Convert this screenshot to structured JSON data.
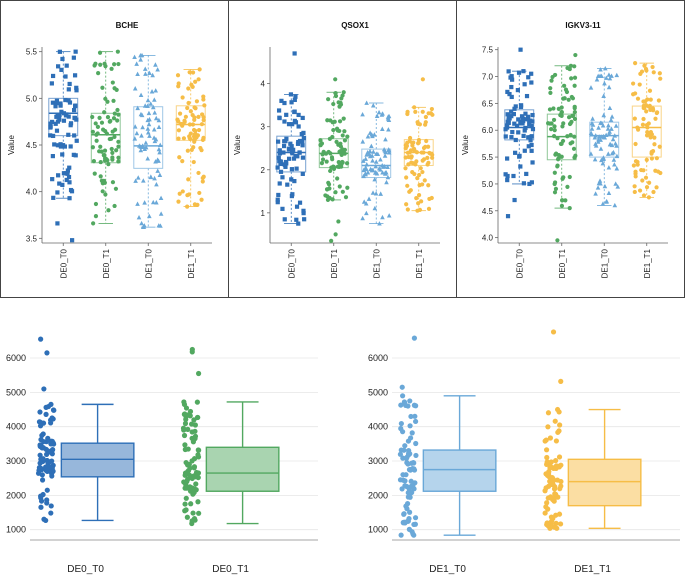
{
  "chart_data": [
    {
      "type": "box",
      "title": "BCHE",
      "ylabel": "Value",
      "ylim": [
        3.45,
        5.55
      ],
      "yticks": [
        3.5,
        4.0,
        4.5,
        5.0,
        5.5
      ],
      "tick_labels": [
        "3.5",
        "4.0",
        "4.5",
        "5.0",
        "5.5"
      ],
      "categories": [
        "DE0_T0",
        "DE0_T1",
        "DE1_T0",
        "DE1_T1"
      ],
      "boxes": [
        {
          "min": 3.93,
          "q1": 4.6,
          "median": 4.84,
          "q3": 5.0,
          "max": 5.5,
          "outliers": [
            3.66,
            3.48
          ]
        },
        {
          "min": 3.66,
          "q1": 4.31,
          "median": 4.61,
          "q3": 4.84,
          "max": 5.5,
          "outliers": []
        },
        {
          "min": 3.62,
          "q1": 4.25,
          "median": 4.49,
          "q3": 4.91,
          "max": 5.46,
          "outliers": []
        },
        {
          "min": 3.84,
          "q1": 4.55,
          "median": 4.72,
          "q3": 4.92,
          "max": 5.31,
          "outliers": []
        }
      ]
    },
    {
      "type": "box",
      "title": "QSOX1",
      "ylabel": "Value",
      "ylim": [
        0.3,
        4.85
      ],
      "yticks": [
        1,
        2,
        3,
        4
      ],
      "tick_labels": [
        "1",
        "2",
        "3",
        "4"
      ],
      "categories": [
        "DE0_T0",
        "DE0_T1",
        "DE1_T0",
        "DE1_T1"
      ],
      "boxes": [
        {
          "min": 0.75,
          "q1": 1.95,
          "median": 2.4,
          "q3": 2.78,
          "max": 3.75,
          "outliers": [
            4.7
          ]
        },
        {
          "min": 1.3,
          "q1": 2.05,
          "median": 2.38,
          "q3": 2.72,
          "max": 3.8,
          "outliers": [
            4.1,
            0.8,
            0.5,
            0.35
          ]
        },
        {
          "min": 0.75,
          "q1": 1.82,
          "median": 2.1,
          "q3": 2.48,
          "max": 3.55,
          "outliers": []
        },
        {
          "min": 1.05,
          "q1": 2.1,
          "median": 2.4,
          "q3": 2.7,
          "max": 3.45,
          "outliers": [
            4.1
          ]
        }
      ]
    },
    {
      "type": "box",
      "title": "IGKV3-11",
      "ylabel": "Value",
      "ylim": [
        3.9,
        7.55
      ],
      "yticks": [
        4.0,
        4.5,
        5.0,
        5.5,
        6.0,
        6.5,
        7.0,
        7.5
      ],
      "tick_labels": [
        "4.0",
        "4.5",
        "5.0",
        "5.5",
        "6.0",
        "6.5",
        "7.0",
        "7.5"
      ],
      "categories": [
        "DE0_T0",
        "DE0_T1",
        "DE1_T0",
        "DE1_T1"
      ],
      "boxes": [
        {
          "min": 5.0,
          "q1": 5.82,
          "median": 6.05,
          "q3": 6.38,
          "max": 7.1,
          "outliers": [
            7.5,
            4.7,
            4.4
          ]
        },
        {
          "min": 4.55,
          "q1": 5.45,
          "median": 5.88,
          "q3": 6.3,
          "max": 7.2,
          "outliers": [
            7.4,
            3.95
          ]
        },
        {
          "min": 4.6,
          "q1": 5.5,
          "median": 5.9,
          "q3": 6.15,
          "max": 7.15,
          "outliers": []
        },
        {
          "min": 4.75,
          "q1": 5.5,
          "median": 6.05,
          "q3": 6.45,
          "max": 7.25,
          "outliers": []
        }
      ]
    },
    {
      "type": "box",
      "ylim": [
        700,
        6700
      ],
      "yticks": [
        1000,
        2000,
        3000,
        4000,
        5000,
        6000
      ],
      "tick_labels": [
        "1000",
        "2000",
        "3000",
        "4000",
        "5000",
        "6000"
      ],
      "categories": [
        "DE0_T0",
        "DE0_T1"
      ],
      "boxes": [
        {
          "min": 1270,
          "q1": 2540,
          "median": 3050,
          "q3": 3520,
          "max": 4650,
          "outliers": [
            5100,
            6150,
            6550
          ]
        },
        {
          "min": 1180,
          "q1": 2120,
          "median": 2650,
          "q3": 3400,
          "max": 4720,
          "outliers": [
            5550,
            6180,
            6250
          ]
        }
      ]
    },
    {
      "type": "box",
      "ylim": [
        700,
        6700
      ],
      "yticks": [
        1000,
        2000,
        3000,
        4000,
        5000,
        6000
      ],
      "tick_labels": [
        "1000",
        "2000",
        "3000",
        "4000",
        "5000",
        "6000"
      ],
      "categories": [
        "DE1_T0",
        "DE1_T1"
      ],
      "boxes": [
        {
          "min": 840,
          "q1": 2120,
          "median": 2750,
          "q3": 3320,
          "max": 4900,
          "outliers": [
            5150,
            6580
          ]
        },
        {
          "min": 1040,
          "q1": 1700,
          "median": 2400,
          "q3": 3050,
          "max": 4500,
          "outliers": [
            5320,
            6760
          ]
        }
      ]
    }
  ],
  "colors": {
    "DE0_T0": "#2e6fb7",
    "DE0_T1": "#52a860",
    "DE1_T0": "#6aa8d8",
    "DE1_T1": "#f6bd47"
  },
  "markers": {
    "DE0_T0": "square",
    "DE0_T1": "circle",
    "DE1_T0": "triangle",
    "DE1_T1": "circle"
  }
}
